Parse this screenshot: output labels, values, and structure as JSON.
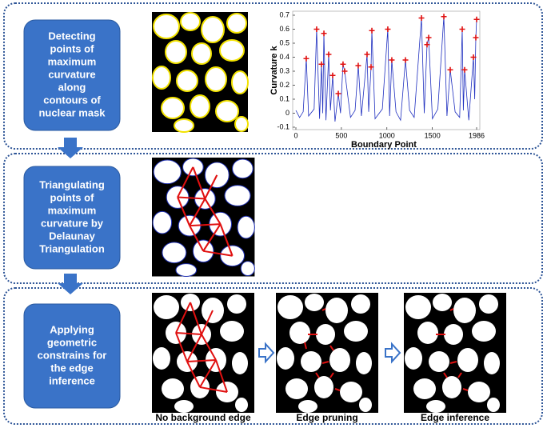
{
  "steps": [
    {
      "text_lines": [
        "Detecting",
        "points of",
        "maximum",
        "curvature",
        "along",
        "contours of",
        "nuclear mask"
      ]
    },
    {
      "text_lines": [
        "Triangulating",
        "points of",
        "maximum",
        "curvature by",
        "Delaunay",
        "Triangulation"
      ]
    },
    {
      "text_lines": [
        "Applying",
        "geometric",
        "constrains for",
        "the edge",
        "inference"
      ]
    }
  ],
  "plot": {
    "type": "line",
    "y_label": "Curvature  k",
    "x_label": "Boundary Point",
    "xlim": [
      0,
      1986
    ],
    "ylim": [
      -0.1,
      0.7
    ],
    "xticks": [
      0,
      500,
      1000,
      1500,
      1986
    ],
    "yticks": [
      -0.1,
      0,
      0.1,
      0.2,
      0.3,
      0.4,
      0.5,
      0.6,
      0.7
    ],
    "curve": {
      "color": "#1f2fbf",
      "x": [
        0,
        40,
        80,
        114,
        140,
        200,
        228,
        260,
        281,
        295,
        308,
        330,
        360,
        380,
        404,
        430,
        466,
        490,
        518,
        536,
        600,
        650,
        685,
        720,
        782,
        800,
        826,
        835,
        870,
        950,
        1010,
        1030,
        1054,
        1100,
        1150,
        1204,
        1250,
        1300,
        1380,
        1410,
        1441,
        1459,
        1500,
        1560,
        1626,
        1660,
        1696,
        1750,
        1800,
        1828,
        1840,
        1854,
        1900,
        1951,
        1965,
        1977,
        1986
      ],
      "y": [
        0.02,
        -0.03,
        0.01,
        0.39,
        -0.02,
        0.03,
        0.6,
        -0.04,
        0.35,
        0.0,
        0.57,
        -0.05,
        0.42,
        0.02,
        0.27,
        -0.06,
        0.14,
        0.0,
        0.35,
        0.3,
        -0.03,
        0.02,
        0.34,
        -0.02,
        0.42,
        0.01,
        0.33,
        0.59,
        -0.04,
        0.03,
        0.6,
        -0.02,
        0.38,
        0.01,
        -0.05,
        0.38,
        0.02,
        -0.03,
        0.68,
        0.0,
        0.49,
        0.54,
        -0.04,
        0.03,
        0.69,
        -0.02,
        0.31,
        0.01,
        -0.03,
        0.6,
        0.02,
        0.31,
        -0.05,
        0.4,
        0.1,
        0.54,
        0.67
      ]
    },
    "peaks": {
      "color": "#e01010",
      "x": [
        114,
        228,
        281,
        308,
        360,
        404,
        466,
        518,
        536,
        685,
        782,
        826,
        835,
        1010,
        1054,
        1204,
        1380,
        1441,
        1459,
        1626,
        1696,
        1828,
        1854,
        1951,
        1977,
        1986
      ],
      "y": [
        0.39,
        0.6,
        0.35,
        0.57,
        0.42,
        0.27,
        0.14,
        0.35,
        0.3,
        0.34,
        0.42,
        0.33,
        0.59,
        0.6,
        0.38,
        0.38,
        0.68,
        0.49,
        0.54,
        0.69,
        0.31,
        0.6,
        0.31,
        0.4,
        0.54,
        0.67
      ]
    }
  },
  "captions": [
    "No background edge",
    "Edge pruning",
    "Edge inference"
  ]
}
